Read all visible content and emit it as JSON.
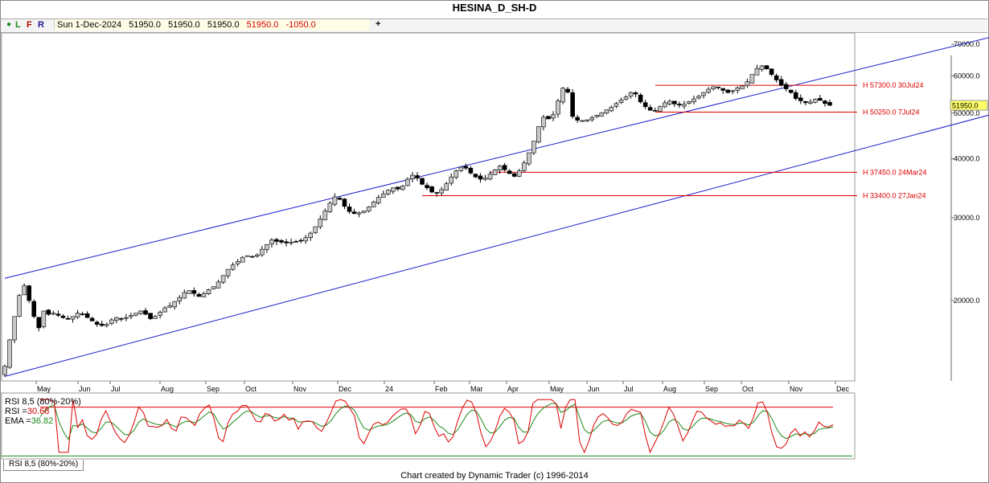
{
  "title": "HESINA_D_SH-D",
  "toolbar": {
    "dot": "●",
    "l_label": "L",
    "f_label": "F",
    "r_label": "R",
    "date": "Sun 1-Dec-2024",
    "open": "51950.0",
    "high": "51950.0",
    "low": "51950.0",
    "close": "51950.0",
    "change": "-1050.0",
    "plus_label": "+"
  },
  "colors": {
    "candle_up": "#c8c8c8",
    "candle_down": "#000000",
    "channel": "#1a1acc",
    "level_line": "#dd0000",
    "rsi_line": "#dd0000",
    "ema_line": "#1a8a1a",
    "current_price_bg": "#ffff66"
  },
  "chart_data": {
    "type": "candlestick",
    "title": "HESINA_D_SH-D",
    "y_scale": "log",
    "ylim": [
      13500,
      74000
    ],
    "y_ticks": [
      {
        "value": 70000,
        "label": "70000.0"
      },
      {
        "value": 60000,
        "label": "60000.0"
      },
      {
        "value": 50000,
        "label": "50000.0"
      },
      {
        "value": 40000,
        "label": "40000.0"
      },
      {
        "value": 30000,
        "label": "30000.0"
      },
      {
        "value": 20000,
        "label": "20000.0"
      }
    ],
    "x_ticks": [
      "May",
      "Jun",
      "Jul",
      "Aug",
      "Sep",
      "Oct",
      "Nov",
      "Dec",
      "24",
      "Feb",
      "Mar",
      "Apr",
      "May",
      "Jun",
      "Jul",
      "Aug",
      "Sep",
      "Oct",
      "Nov",
      "Dec"
    ],
    "current_price": {
      "value": 51950,
      "label": "51950.0"
    },
    "levels": [
      {
        "value": 57300,
        "label": "H 57300.0 30Jul24"
      },
      {
        "value": 50250,
        "label": "H 50250.0 7Jul24"
      },
      {
        "value": 37450,
        "label": "H 37450.0 24Mar24"
      },
      {
        "value": 33400,
        "label": "H 33400.0 27Jan24"
      }
    ],
    "channel": {
      "upper": {
        "from_index": 0,
        "from_value": 22300,
        "to_index": 209,
        "to_value": 75000
      },
      "lower": {
        "from_index": 0,
        "from_value": 13800,
        "to_index": 209,
        "to_value": 51500
      }
    },
    "series": [
      {
        "values": [
          14500,
          16500,
          18500,
          20500,
          21500,
          20000,
          18500,
          17500,
          19000,
          18700,
          18800,
          18600,
          18400,
          18300,
          18500,
          18800,
          18700,
          18400,
          18100,
          17800,
          17700,
          17800,
          18200,
          18400,
          18300,
          18400,
          18600,
          18800,
          19000,
          18700,
          18300,
          18500,
          18900,
          19300,
          19500,
          19900,
          20300,
          20800,
          21000,
          20700,
          20400,
          20700,
          21100,
          21400,
          21900,
          22600,
          23300,
          23800,
          24200,
          24700,
          24900,
          24800,
          25000,
          25700,
          26300,
          26900,
          26700,
          26600,
          26500,
          26600,
          26700,
          26800,
          27200,
          27800,
          28700,
          29800,
          31000,
          32200,
          33200,
          32800,
          31700,
          30900,
          30600,
          30700,
          31000,
          31600,
          32400,
          33100,
          33700,
          34300,
          34700,
          34500,
          35000,
          36200,
          36900,
          36400,
          35300,
          34700,
          34000,
          33800,
          34400,
          35400,
          36600,
          37700,
          38400,
          38200,
          37300,
          36600,
          36200,
          36400,
          37100,
          37900,
          38600,
          37900,
          37200,
          36700,
          37700,
          39200,
          41200,
          43600,
          46800,
          49000,
          48600,
          49600,
          53100,
          56500,
          55400,
          49200,
          48300,
          48200,
          48400,
          48900,
          49500,
          50100,
          50800,
          51500,
          52400,
          53300,
          54100,
          55300,
          54900,
          52800,
          51600,
          50700,
          50500,
          51600,
          52600,
          53000,
          52300,
          52000,
          52200,
          52900,
          53600,
          54300,
          55300,
          56200,
          56900,
          56600,
          55900,
          55300,
          55800,
          56600,
          57100,
          58300,
          60400,
          62200,
          63000,
          62100,
          60400,
          58800,
          57300,
          56300,
          55300,
          53700,
          53100,
          52600,
          52800,
          53500,
          53200,
          52400,
          51950
        ]
      }
    ],
    "rsi": {
      "label": "RSI 8,5 (80%-20%)",
      "rsi_label": "RSI =",
      "rsi_value": "30.68",
      "ema_label": "EMA =",
      "ema_value": "36.82",
      "upper_band": 80,
      "lower_band": 20,
      "tab_label": "RSI 8,5 (80%-20%)"
    }
  },
  "footer": "Chart created by Dynamic Trader  (c) 1996-2014"
}
